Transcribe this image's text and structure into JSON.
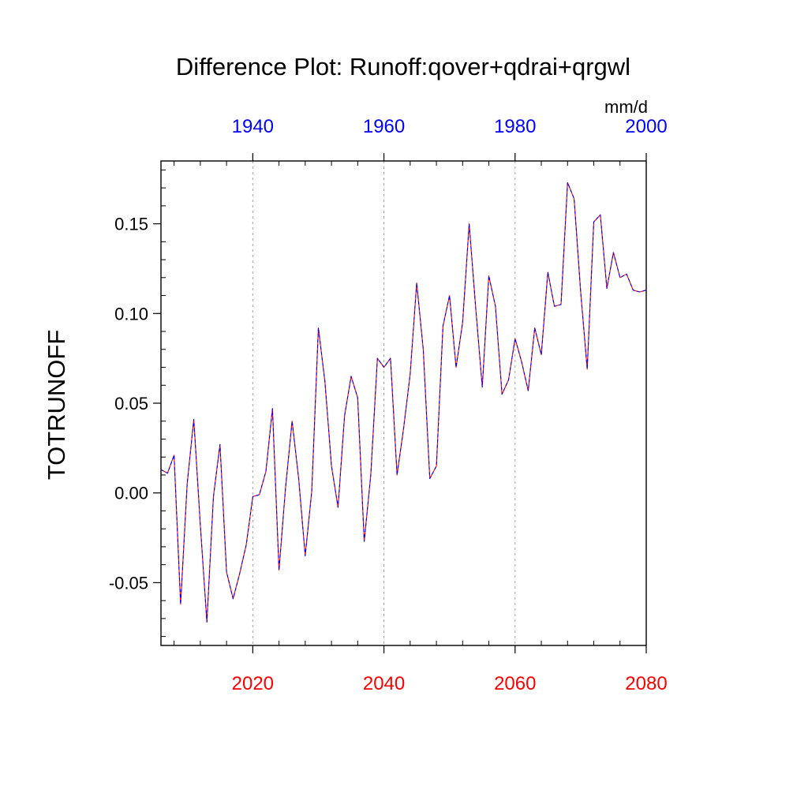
{
  "chart_data": {
    "type": "line",
    "title": "Difference Plot: Runoff:qover+qdrai+qrgwl",
    "units": "mm/d",
    "ylabel": "TOTRUNOFF",
    "xlim": [
      2006,
      2080
    ],
    "ylim": [
      -0.085,
      0.185
    ],
    "yticks": [
      -0.05,
      0.0,
      0.05,
      0.1,
      0.15
    ],
    "ytick_labels": [
      "-0.05",
      "0.00",
      "0.05",
      "0.10",
      "0.15"
    ],
    "bottom_axis": {
      "color": "#ff0000",
      "ticks": [
        2020,
        2040,
        2060,
        2080
      ],
      "tick_labels": [
        "2020",
        "2040",
        "2060",
        "2080"
      ]
    },
    "top_axis": {
      "color": "#0000ff",
      "ticks": [
        1940,
        1960,
        1980,
        2000
      ],
      "tick_labels": [
        "1940",
        "1960",
        "1980",
        "2000"
      ],
      "offset_years": -80
    },
    "grid_x": [
      2020,
      2040,
      2060
    ],
    "series": [
      {
        "color_dash": "#0000ff",
        "color_line": "#ff0000",
        "x": [
          2006,
          2007,
          2008,
          2009,
          2010,
          2011,
          2012,
          2013,
          2014,
          2015,
          2016,
          2017,
          2018,
          2019,
          2020,
          2021,
          2022,
          2023,
          2024,
          2025,
          2026,
          2027,
          2028,
          2029,
          2030,
          2031,
          2032,
          2033,
          2034,
          2035,
          2036,
          2037,
          2038,
          2039,
          2040,
          2041,
          2042,
          2043,
          2044,
          2045,
          2046,
          2047,
          2048,
          2049,
          2050,
          2051,
          2052,
          2053,
          2054,
          2055,
          2056,
          2057,
          2058,
          2059,
          2060,
          2061,
          2062,
          2063,
          2064,
          2065,
          2066,
          2067,
          2068,
          2069,
          2070,
          2071,
          2072,
          2073,
          2074,
          2075,
          2076,
          2077,
          2078,
          2079,
          2080
        ],
        "y": [
          0.013,
          0.011,
          0.021,
          -0.062,
          0.005,
          0.041,
          -0.018,
          -0.072,
          -0.002,
          0.027,
          -0.044,
          -0.059,
          -0.045,
          -0.029,
          -0.002,
          -0.001,
          0.012,
          0.047,
          -0.043,
          0.003,
          0.04,
          0.008,
          -0.035,
          0.001,
          0.092,
          0.062,
          0.015,
          -0.008,
          0.043,
          0.065,
          0.053,
          -0.027,
          0.01,
          0.075,
          0.07,
          0.075,
          0.01,
          0.036,
          0.066,
          0.117,
          0.08,
          0.008,
          0.015,
          0.093,
          0.11,
          0.07,
          0.095,
          0.15,
          0.103,
          0.059,
          0.121,
          0.104,
          0.055,
          0.063,
          0.086,
          0.073,
          0.057,
          0.092,
          0.077,
          0.123,
          0.104,
          0.105,
          0.173,
          0.164,
          0.112,
          0.069,
          0.151,
          0.155,
          0.114,
          0.134,
          0.12,
          0.122,
          0.113,
          0.112,
          0.113
        ]
      }
    ]
  }
}
